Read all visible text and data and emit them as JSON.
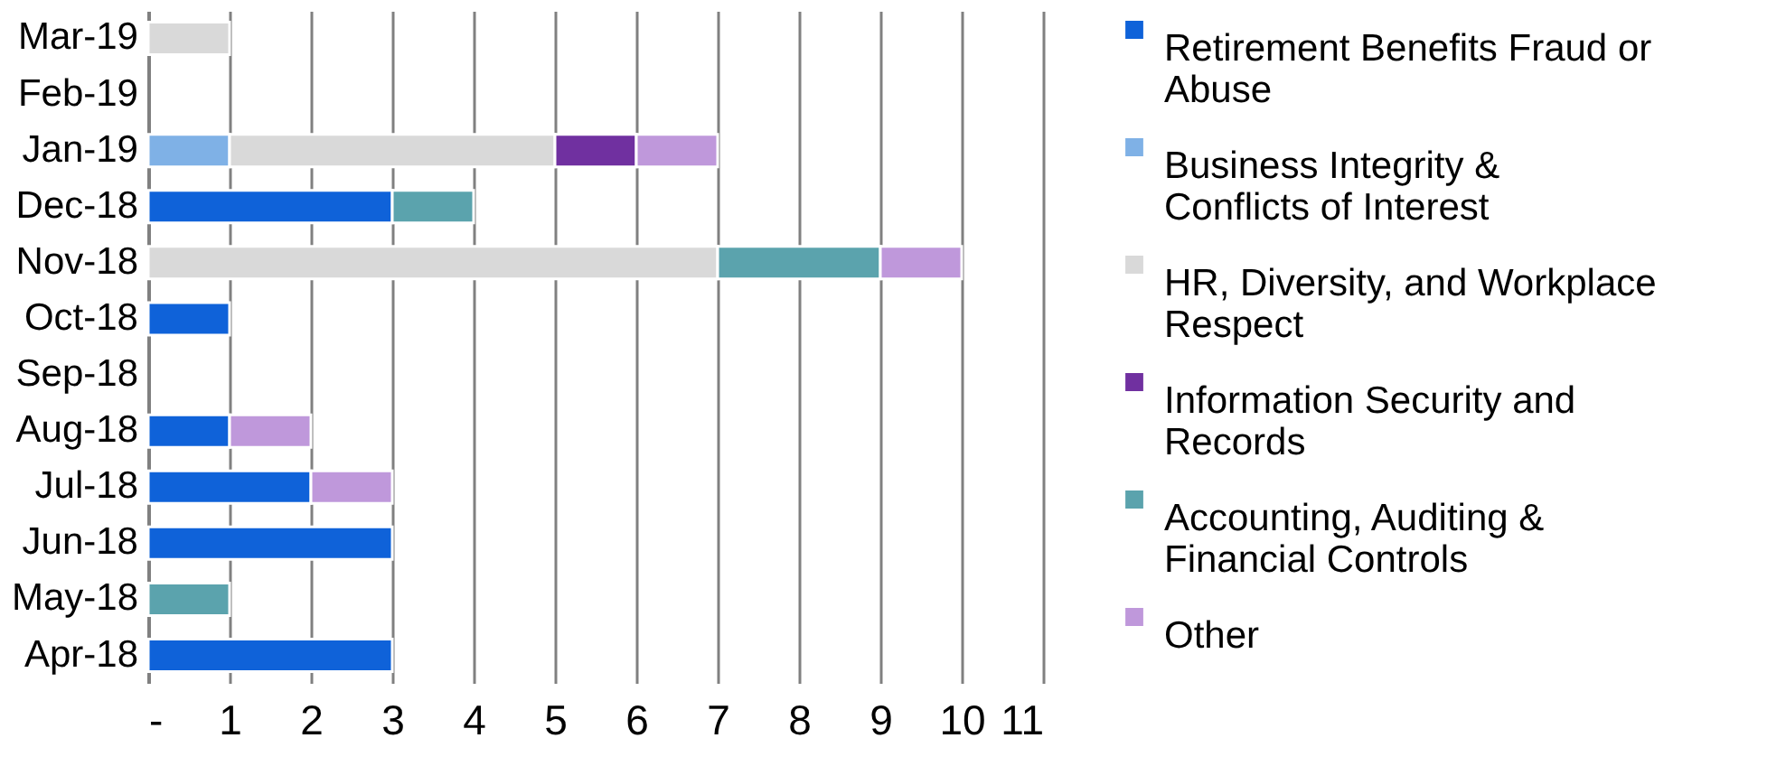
{
  "chart_data": {
    "type": "bar",
    "orientation": "horizontal",
    "stacked": true,
    "categories": [
      "Mar-19",
      "Feb-19",
      "Jan-19",
      "Dec-18",
      "Nov-18",
      "Oct-18",
      "Sep-18",
      "Aug-18",
      "Jul-18",
      "Jun-18",
      "May-18",
      "Apr-18"
    ],
    "series": [
      {
        "name": "Retirement Benefits Fraud or Abuse",
        "color": "#0f62d9",
        "values": [
          null,
          null,
          null,
          3,
          null,
          1,
          null,
          1,
          2,
          3,
          null,
          3
        ]
      },
      {
        "name": "Business Integrity & Conflicts of Interest",
        "color": "#7fb1e6",
        "values": [
          null,
          null,
          1,
          null,
          null,
          null,
          null,
          null,
          null,
          null,
          null,
          null
        ]
      },
      {
        "name": "HR, Diversity, and Workplace Respect",
        "color": "#d9d9d9",
        "values": [
          1,
          null,
          4,
          null,
          7,
          null,
          null,
          null,
          null,
          null,
          null,
          null
        ]
      },
      {
        "name": "Information Security and Records",
        "color": "#7030a0",
        "values": [
          null,
          null,
          1,
          null,
          null,
          null,
          null,
          null,
          null,
          null,
          null,
          null
        ]
      },
      {
        "name": "Accounting, Auditing & Financial Controls",
        "color": "#5ba3ad",
        "values": [
          null,
          null,
          null,
          1,
          2,
          null,
          null,
          null,
          null,
          null,
          1,
          null
        ]
      },
      {
        "name": "Other",
        "color": "#bf98db",
        "values": [
          null,
          null,
          1,
          null,
          1,
          null,
          null,
          1,
          1,
          null,
          null,
          null
        ]
      }
    ],
    "xlim": [
      0,
      11
    ],
    "xticks": [
      {
        "value": 0,
        "label": "-"
      },
      1,
      2,
      3,
      4,
      5,
      6,
      7,
      8,
      9,
      10,
      11
    ],
    "grid": "x",
    "legend": "right"
  }
}
